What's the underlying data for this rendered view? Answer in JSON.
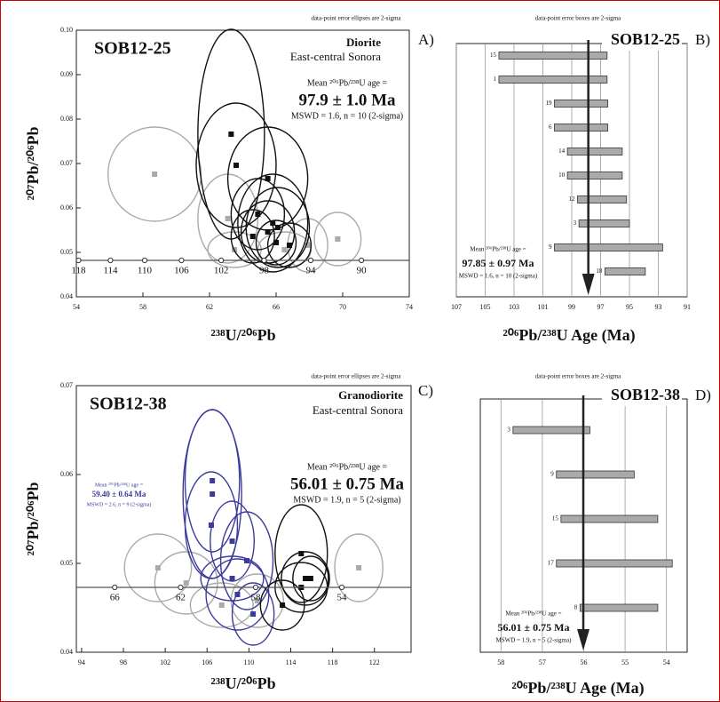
{
  "chart_data": [
    {
      "type": "concordia",
      "label": "A)",
      "sample": "SOB12-25",
      "rock": "Diorite",
      "region": "East-central Sonora",
      "note": "data-point error ellipses are 2-sigma",
      "mean_label": "Mean ²⁰⁶Pb/²³⁸U age =",
      "mean_text": "97.9 ± 1.0 Ma",
      "mswd_text": "MSWD = 1.6, n = 10 (2-sigma)",
      "x_label": "²³⁸U/²⁰⁶Pb",
      "y_label": "²⁰⁷Pb/²⁰⁶Pb",
      "xlim": [
        54,
        74
      ],
      "xticks": [
        54,
        58,
        62,
        66,
        70,
        74
      ],
      "ylim": [
        0.04,
        0.1
      ],
      "yticks": [
        0.04,
        0.05,
        0.06,
        0.07,
        0.08,
        0.09,
        {
          "value": 0.1,
          "label": "0.10"
        }
      ],
      "concordia": {
        "y": 0.0482,
        "ages": [
          118,
          114,
          110,
          106,
          102,
          98,
          94,
          90
        ]
      },
      "series": [
        {
          "color": "#aaaaaa",
          "x": [
            58.7,
            63.1,
            69.7,
            67.9,
            63.5,
            66.5
          ],
          "y": [
            0.0676,
            0.0576,
            0.053,
            0.0516,
            0.0506,
            0.0506
          ],
          "x_err": [
            2.8,
            1.8,
            1.4,
            1.2,
            1.6,
            1.6
          ],
          "y_err": [
            0.0106,
            0.01,
            0.006,
            0.006,
            0.004,
            0.004
          ]
        },
        {
          "color": "#111111",
          "x": [
            63.3,
            63.6,
            65.5,
            64.9,
            65.5,
            66.1,
            64.6,
            66.0,
            66.8,
            65.8
          ],
          "y": [
            0.0766,
            0.0696,
            0.0666,
            0.0586,
            0.0546,
            0.0556,
            0.0536,
            0.0522,
            0.0516,
            0.0566
          ],
          "x_err": [
            2.0,
            2.4,
            2.4,
            1.6,
            1.6,
            1.9,
            1.3,
            1.2,
            1.3,
            2.1
          ],
          "y_err": [
            0.0236,
            0.014,
            0.0116,
            0.008,
            0.007,
            0.009,
            0.006,
            0.005,
            0.005,
            0.011
          ]
        }
      ]
    },
    {
      "type": "age_bars",
      "label": "B)",
      "sample": "SOB12-25",
      "note": "data-point error boxes are 2-sigma",
      "mean_label": "Mean ²⁰⁶Pb/²³⁸U age =",
      "mean_text": "97.85 ± 0.97 Ma",
      "mswd_text": "MSWD = 1.6, n = 10 (2-sigma)",
      "x_label": "²⁰⁶Pb/²³⁸U Age (Ma)",
      "xlim": [
        107,
        91
      ],
      "xticks": [
        107,
        105,
        103,
        101,
        99,
        97,
        95,
        93,
        91
      ],
      "grid": true,
      "color": "#aaaaaa",
      "mean": 97.85,
      "categories": [
        "15",
        "1",
        "19",
        "6",
        "14",
        "10",
        "12",
        "3",
        "9",
        "18"
      ],
      "values": [
        100.3,
        100.3,
        98.35,
        98.35,
        97.4,
        97.4,
        96.9,
        96.75,
        96.45,
        95.3
      ],
      "errors": [
        3.75,
        3.75,
        1.85,
        1.85,
        1.9,
        1.9,
        1.7,
        1.75,
        3.75,
        1.4
      ]
    },
    {
      "type": "concordia",
      "label": "C)",
      "sample": "SOB12-38",
      "rock": "Granodiorite",
      "region": "East-central Sonora",
      "note": "data-point error ellipses are 2-sigma",
      "mean_label": "Mean ²⁰⁶Pb/²³⁸U age =",
      "mean_text": "56.01 ± 0.75 Ma",
      "mswd_text": "MSWD = 1.9, n = 5 (2-sigma)",
      "x_label": "²³⁸U/²⁰⁶Pb",
      "y_label": "²⁰⁷Pb/²⁰⁶Pb",
      "sub_mean": {
        "label": "Mean ²⁰⁶Pb/²³⁸U age =",
        "text": "59.40 ± 0.64 Ma",
        "mswd": "MSWD = 2.6, n = 9 (2-sigma)",
        "color": "#3b3b9c"
      },
      "xlim": [
        93.5,
        125.5
      ],
      "xticks": [
        94,
        98,
        102,
        106,
        110,
        114,
        118,
        122
      ],
      "ylim": [
        0.04,
        0.07
      ],
      "yticks": [
        0.04,
        0.05,
        0.06,
        0.07
      ],
      "concordia": {
        "y": 0.0473,
        "ages": [
          66,
          62,
          58,
          54
        ]
      },
      "series": [
        {
          "color": "#aaaaaa",
          "x": [
            101.3,
            104.0,
            120.5,
            107.4,
            110.8
          ],
          "y": [
            0.0495,
            0.0478,
            0.0495,
            0.0453,
            0.0458
          ],
          "x_err": [
            3.2,
            3.0,
            2.3,
            3.0,
            2.5
          ],
          "y_err": [
            0.0038,
            0.0035,
            0.0038,
            0.0025,
            0.003
          ]
        },
        {
          "color": "#3b3b9c",
          "x": [
            106.5,
            106.5,
            106.4,
            108.4,
            109.8,
            108.4,
            108.9,
            110.4
          ],
          "y": [
            0.0578,
            0.0593,
            0.0543,
            0.0525,
            0.0503,
            0.0483,
            0.0465,
            0.0443
          ],
          "x_err": [
            2.8,
            2.6,
            2.5,
            2.1,
            2.5,
            3.0,
            3.0,
            2.0
          ],
          "y_err": [
            0.0095,
            0.008,
            0.006,
            0.0045,
            0.0055,
            0.0025,
            0.004,
            0.0035
          ]
        },
        {
          "color": "#111111",
          "x": [
            115.0,
            115.4,
            115.0,
            113.2,
            115.9
          ],
          "y": [
            0.0511,
            0.0483,
            0.0473,
            0.0453,
            0.0483
          ],
          "x_err": [
            2.5,
            2.3,
            2.5,
            2.1,
            1.7
          ],
          "y_err": [
            0.0055,
            0.003,
            0.0028,
            0.0028,
            0.0025
          ]
        }
      ]
    },
    {
      "type": "age_bars",
      "label": "D)",
      "sample": "SOB12-38",
      "note": "data-point error boxes are 2-sigma",
      "mean_label": "Mean ²⁰⁶Pb/²³⁸U age =",
      "mean_text": "56.01 ± 0.75 Ma",
      "mswd_text": "MSWD = 1.9, n = 5 (2-sigma)",
      "x_label": "²⁰⁶Pb/²³⁸U Age (Ma)",
      "xlim": [
        58.5,
        53.5
      ],
      "xticks": [
        58,
        57,
        56,
        55,
        54
      ],
      "grid": true,
      "color": "#aaaaaa",
      "mean": 56.01,
      "categories": [
        "3",
        "9",
        "15",
        "17",
        "8"
      ],
      "values": [
        56.78,
        55.72,
        55.38,
        55.26,
        55.15
      ],
      "errors": [
        0.93,
        0.94,
        1.17,
        1.4,
        0.94
      ]
    }
  ]
}
